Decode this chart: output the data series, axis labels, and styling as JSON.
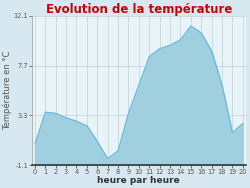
{
  "title": "Evolution de la température",
  "title_color": "#cc0000",
  "xlabel": "heure par heure",
  "ylabel": "Température en °C",
  "background_color": "#d8e8f0",
  "plot_bg_color": "#e8f4f8",
  "fill_color": "#a0cfe0",
  "line_color": "#60b8d8",
  "ylim": [
    -1.1,
    12.1
  ],
  "yticks": [
    -1.1,
    3.3,
    7.7,
    12.1
  ],
  "ytick_labels": [
    "-1.1",
    "3.3",
    "7.7",
    "12.1"
  ],
  "hours": [
    0,
    1,
    2,
    3,
    4,
    5,
    6,
    7,
    8,
    9,
    10,
    11,
    12,
    13,
    14,
    15,
    16,
    17,
    18,
    19,
    20
  ],
  "temperatures": [
    0.8,
    3.6,
    3.5,
    3.1,
    2.8,
    2.4,
    1.0,
    -0.5,
    0.2,
    3.5,
    6.0,
    8.5,
    9.2,
    9.5,
    10.0,
    11.2,
    10.6,
    9.0,
    6.0,
    1.8,
    2.6
  ],
  "grid_color": "#b8c8d0",
  "tick_color": "#555555",
  "font_size_title": 8.5,
  "font_size_labels": 6.0,
  "font_size_ticks": 4.8
}
